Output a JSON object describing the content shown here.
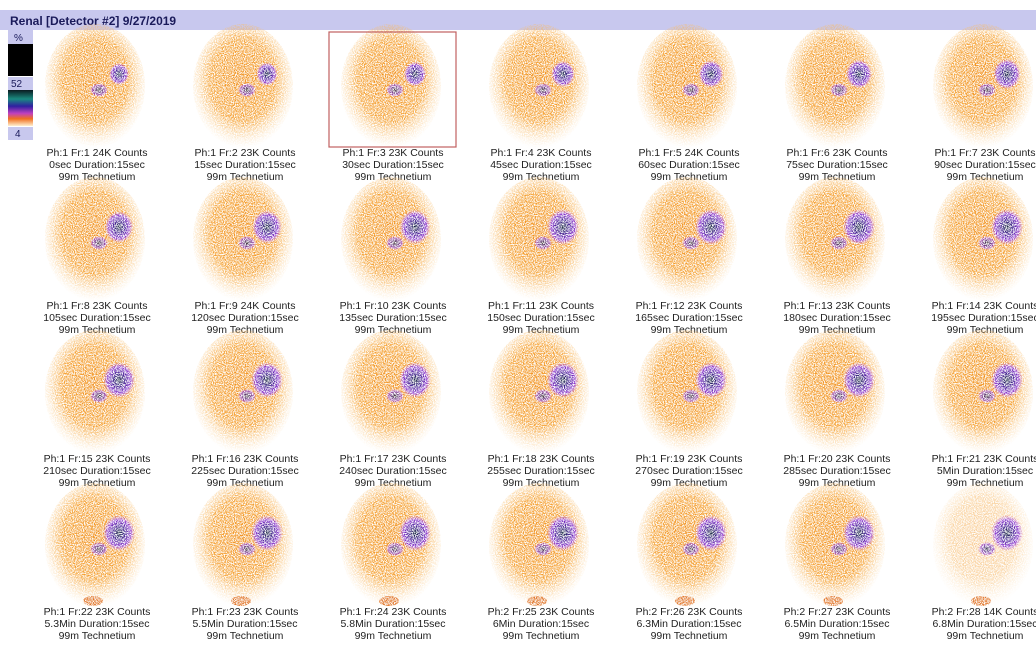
{
  "header": {
    "title": "Renal [Detector #2] 9/27/2019"
  },
  "scale": {
    "unit": "%",
    "max": "52",
    "min": "4"
  },
  "frames": [
    {
      "label": "Ph:1 Fr:1 24K Counts",
      "timing": "0sec Duration:15sec",
      "isotope": "99m Technetium"
    },
    {
      "label": "Ph:1 Fr:2 23K Counts",
      "timing": "15sec Duration:15sec",
      "isotope": "99m Technetium"
    },
    {
      "label": "Ph:1 Fr:3 23K Counts",
      "timing": "30sec Duration:15sec",
      "isotope": "99m Technetium"
    },
    {
      "label": "Ph:1 Fr:4 23K Counts",
      "timing": "45sec Duration:15sec",
      "isotope": "99m Technetium"
    },
    {
      "label": "Ph:1 Fr:5 24K Counts",
      "timing": "60sec Duration:15sec",
      "isotope": "99m Technetium"
    },
    {
      "label": "Ph:1 Fr:6 23K Counts",
      "timing": "75sec Duration:15sec",
      "isotope": "99m Technetium"
    },
    {
      "label": "Ph:1 Fr:7 23K Counts",
      "timing": "90sec Duration:15sec",
      "isotope": "99m Technetium"
    },
    {
      "label": "Ph:1 Fr:8 23K Counts",
      "timing": "105sec Duration:15sec",
      "isotope": "99m Technetium"
    },
    {
      "label": "Ph:1 Fr:9 24K Counts",
      "timing": "120sec Duration:15sec",
      "isotope": "99m Technetium"
    },
    {
      "label": "Ph:1 Fr:10 23K Counts",
      "timing": "135sec Duration:15sec",
      "isotope": "99m Technetium"
    },
    {
      "label": "Ph:1 Fr:11 23K Counts",
      "timing": "150sec Duration:15sec",
      "isotope": "99m Technetium"
    },
    {
      "label": "Ph:1 Fr:12 23K Counts",
      "timing": "165sec Duration:15sec",
      "isotope": "99m Technetium"
    },
    {
      "label": "Ph:1 Fr:13 23K Counts",
      "timing": "180sec Duration:15sec",
      "isotope": "99m Technetium"
    },
    {
      "label": "Ph:1 Fr:14 23K Counts",
      "timing": "195sec Duration:15sec",
      "isotope": "99m Technetium"
    },
    {
      "label": "Ph:1 Fr:15 23K Counts",
      "timing": "210sec Duration:15sec",
      "isotope": "99m Technetium"
    },
    {
      "label": "Ph:1 Fr:16 23K Counts",
      "timing": "225sec Duration:15sec",
      "isotope": "99m Technetium"
    },
    {
      "label": "Ph:1 Fr:17 23K Counts",
      "timing": "240sec Duration:15sec",
      "isotope": "99m Technetium"
    },
    {
      "label": "Ph:1 Fr:18 23K Counts",
      "timing": "255sec Duration:15sec",
      "isotope": "99m Technetium"
    },
    {
      "label": "Ph:1 Fr:19 23K Counts",
      "timing": "270sec Duration:15sec",
      "isotope": "99m Technetium"
    },
    {
      "label": "Ph:1 Fr:20 23K Counts",
      "timing": "285sec Duration:15sec",
      "isotope": "99m Technetium"
    },
    {
      "label": "Ph:1 Fr:21 23K Counts",
      "timing": "5Min Duration:15sec",
      "isotope": "99m Technetium"
    },
    {
      "label": "Ph:1 Fr:22 23K Counts",
      "timing": "5.3Min Duration:15sec",
      "isotope": "99m Technetium"
    },
    {
      "label": "Ph:1 Fr:23 23K Counts",
      "timing": "5.5Min Duration:15sec",
      "isotope": "99m Technetium"
    },
    {
      "label": "Ph:1 Fr:24 23K Counts",
      "timing": "5.8Min Duration:15sec",
      "isotope": "99m Technetium"
    },
    {
      "label": "Ph:2 Fr:25 23K Counts",
      "timing": "6Min Duration:15sec",
      "isotope": "99m Technetium"
    },
    {
      "label": "Ph:2 Fr:26 23K Counts",
      "timing": "6.3Min Duration:15sec",
      "isotope": "99m Technetium"
    },
    {
      "label": "Ph:2 Fr:27 23K Counts",
      "timing": "6.5Min Duration:15sec",
      "isotope": "99m Technetium"
    },
    {
      "label": "Ph:2 Fr:28 14K Counts",
      "timing": "6.8Min Duration:15sec",
      "isotope": "99m Technetium"
    }
  ]
}
